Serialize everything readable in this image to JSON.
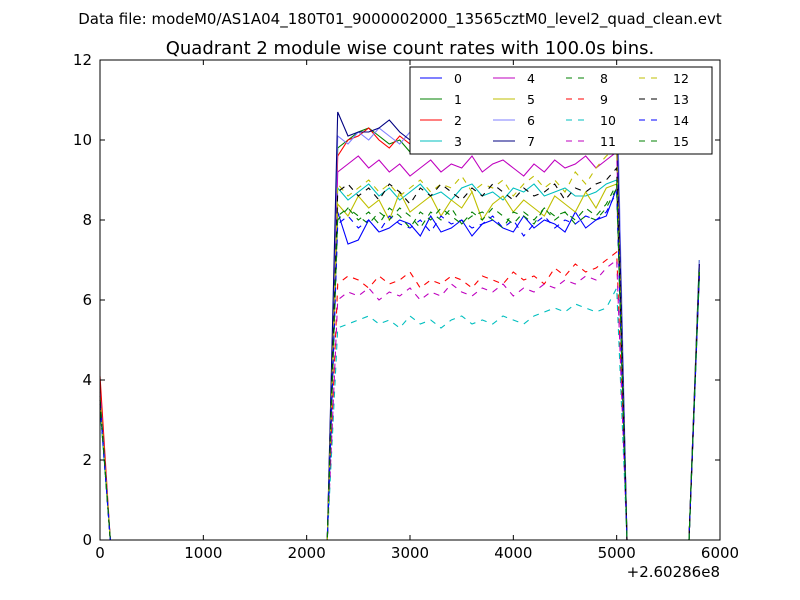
{
  "chart_data": {
    "type": "line",
    "suptitle": "Data file: modeM0/AS1A04_180T01_9000002000_13565cztM0_level2_quad_clean.evt",
    "title": "Quadrant 2 module wise count rates with 100.0s bins.",
    "xlabel": "",
    "ylabel": "",
    "x_offset_label": "+2.60286e8",
    "xlim": [
      0,
      6000
    ],
    "ylim": [
      0,
      12
    ],
    "x_ticks": [
      "0",
      "1000",
      "2000",
      "3000",
      "4000",
      "5000",
      "6000"
    ],
    "y_ticks": [
      "0",
      "2",
      "4",
      "6",
      "8",
      "10",
      "12"
    ],
    "grid": false,
    "legend_position": "top-right",
    "legend_columns": 4,
    "x": [
      0,
      100,
      2200,
      2300,
      2400,
      2500,
      2600,
      2700,
      2800,
      2900,
      3000,
      3100,
      3200,
      3300,
      3400,
      3500,
      3600,
      3700,
      3800,
      3900,
      4000,
      4100,
      4200,
      4300,
      4400,
      4500,
      4600,
      4700,
      4800,
      4900,
      5000,
      5100,
      5700,
      5800
    ],
    "series": [
      {
        "name": "0",
        "color": "#0000ff",
        "dash": false,
        "values": [
          3.6,
          0,
          0,
          8.2,
          7.4,
          7.5,
          8.0,
          7.7,
          7.8,
          8.0,
          7.9,
          7.6,
          8.1,
          7.7,
          7.8,
          8.0,
          7.6,
          7.9,
          8.0,
          7.8,
          7.7,
          8.1,
          7.8,
          8.0,
          7.9,
          7.7,
          8.2,
          7.8,
          8.0,
          8.1,
          8.8,
          0,
          0,
          6.7
        ]
      },
      {
        "name": "1",
        "color": "#008000",
        "dash": false,
        "values": [
          3.5,
          0,
          0,
          9.8,
          10.0,
          10.2,
          10.3,
          10.1,
          9.9,
          10.0,
          9.7,
          10.0,
          10.2,
          9.8,
          10.1,
          9.9,
          10.3,
          10.0,
          9.8,
          10.2,
          10.0,
          9.9,
          10.3,
          10.1,
          9.8,
          10.2,
          10.0,
          10.4,
          10.1,
          10.3,
          10.5,
          0,
          0,
          7.0
        ]
      },
      {
        "name": "2",
        "color": "#ff0000",
        "dash": false,
        "values": [
          4.1,
          0,
          0,
          9.6,
          10.0,
          10.1,
          10.3,
          10.0,
          9.8,
          10.1,
          9.9,
          10.2,
          10.0,
          9.8,
          10.0,
          10.2,
          9.9,
          10.1,
          10.0,
          9.8,
          10.2,
          10.0,
          10.1,
          9.9,
          10.2,
          10.0,
          10.3,
          10.1,
          10.2,
          10.4,
          10.6,
          0,
          0,
          6.9
        ]
      },
      {
        "name": "3",
        "color": "#00bfbf",
        "dash": false,
        "values": [
          3.4,
          0,
          0,
          8.8,
          8.5,
          8.7,
          8.9,
          8.6,
          8.8,
          8.5,
          8.7,
          8.9,
          8.6,
          8.7,
          8.5,
          8.8,
          8.9,
          8.6,
          8.7,
          8.5,
          8.8,
          8.7,
          8.9,
          8.6,
          8.7,
          8.8,
          8.6,
          8.6,
          8.7,
          8.9,
          9.0,
          0,
          0,
          6.8
        ]
      },
      {
        "name": "4",
        "color": "#bf00bf",
        "dash": false,
        "values": [
          3.7,
          0,
          0,
          9.2,
          9.4,
          9.6,
          9.3,
          9.5,
          9.2,
          9.4,
          9.1,
          9.3,
          9.5,
          9.2,
          9.4,
          9.3,
          9.6,
          9.2,
          9.4,
          9.5,
          9.3,
          9.1,
          9.4,
          9.2,
          9.5,
          9.3,
          9.4,
          9.6,
          9.3,
          9.5,
          9.7,
          0,
          0,
          6.7
        ]
      },
      {
        "name": "5",
        "color": "#bfbf00",
        "dash": false,
        "values": [
          3.5,
          0,
          0,
          8.4,
          8.1,
          8.6,
          8.3,
          8.5,
          8.0,
          8.7,
          8.2,
          8.4,
          8.6,
          8.1,
          8.5,
          8.3,
          8.7,
          8.0,
          8.4,
          8.6,
          8.2,
          8.5,
          8.3,
          8.1,
          8.6,
          8.4,
          8.2,
          8.7,
          8.3,
          8.8,
          8.9,
          0,
          0,
          6.8
        ]
      },
      {
        "name": "6",
        "color": "#7f7fff",
        "dash": false,
        "values": [
          3.6,
          0,
          0,
          10.1,
          9.9,
          10.2,
          10.0,
          10.3,
          10.1,
          9.9,
          10.2,
          10.0,
          10.4,
          10.1,
          10.6,
          10.2,
          10.0,
          10.5,
          10.3,
          10.1,
          10.4,
          10.2,
          10.6,
          10.3,
          10.1,
          10.5,
          10.4,
          10.6,
          10.3,
          10.8,
          11.6,
          0,
          0,
          7.0
        ]
      },
      {
        "name": "7",
        "color": "#000080",
        "dash": false,
        "values": [
          3.5,
          0,
          0,
          10.7,
          10.1,
          10.2,
          10.2,
          10.3,
          10.5,
          10.2,
          10.0,
          10.4,
          10.3,
          10.2,
          10.5,
          10.1,
          10.3,
          10.2,
          10.4,
          10.3,
          10.1,
          10.2,
          10.4,
          10.0,
          10.3,
          10.2,
          10.4,
          10.2,
          10.3,
          10.5,
          10.6,
          0,
          0,
          6.9
        ]
      },
      {
        "name": "8",
        "color": "#008000",
        "dash": true,
        "values": [
          3.4,
          0,
          0,
          8.0,
          8.3,
          8.1,
          7.9,
          8.2,
          8.0,
          8.3,
          8.1,
          7.8,
          8.2,
          8.0,
          8.3,
          7.9,
          8.1,
          8.2,
          8.0,
          7.8,
          8.2,
          8.1,
          7.9,
          8.3,
          8.0,
          8.2,
          7.9,
          8.1,
          8.0,
          8.3,
          8.8,
          0,
          0,
          6.7
        ]
      },
      {
        "name": "9",
        "color": "#ff0000",
        "dash": true,
        "values": [
          3.6,
          0,
          0,
          6.4,
          6.6,
          6.5,
          6.3,
          6.6,
          6.4,
          6.5,
          6.7,
          6.3,
          6.5,
          6.4,
          6.6,
          6.5,
          6.3,
          6.6,
          6.5,
          6.4,
          6.7,
          6.5,
          6.6,
          6.4,
          6.8,
          6.6,
          6.9,
          6.7,
          6.8,
          7.0,
          7.2,
          0,
          0,
          6.6
        ]
      },
      {
        "name": "10",
        "color": "#00bfbf",
        "dash": true,
        "values": [
          3.3,
          0,
          0,
          5.3,
          5.4,
          5.5,
          5.6,
          5.4,
          5.5,
          5.3,
          5.6,
          5.4,
          5.5,
          5.3,
          5.5,
          5.6,
          5.4,
          5.5,
          5.4,
          5.6,
          5.5,
          5.4,
          5.6,
          5.7,
          5.8,
          5.7,
          5.9,
          5.8,
          5.7,
          5.8,
          6.3,
          0,
          0,
          6.5
        ]
      },
      {
        "name": "11",
        "color": "#bf00bf",
        "dash": true,
        "values": [
          3.5,
          0,
          0,
          6.0,
          6.2,
          6.1,
          6.3,
          6.0,
          6.2,
          6.1,
          6.3,
          6.0,
          6.2,
          6.1,
          6.4,
          6.2,
          6.1,
          6.3,
          6.2,
          6.4,
          6.1,
          6.3,
          6.2,
          6.4,
          6.3,
          6.5,
          6.4,
          6.6,
          6.5,
          6.8,
          7.0,
          0,
          0,
          6.6
        ]
      },
      {
        "name": "12",
        "color": "#bfbf00",
        "dash": true,
        "values": [
          3.6,
          0,
          0,
          8.9,
          8.6,
          8.8,
          9.0,
          8.7,
          8.9,
          8.6,
          8.8,
          9.0,
          8.7,
          8.9,
          8.8,
          9.1,
          8.7,
          8.9,
          8.8,
          9.0,
          8.6,
          8.9,
          9.1,
          8.8,
          9.0,
          8.7,
          9.2,
          8.9,
          9.3,
          9.6,
          9.8,
          0,
          0,
          6.8
        ]
      },
      {
        "name": "13",
        "color": "#000000",
        "dash": true,
        "values": [
          3.5,
          0,
          0,
          8.7,
          8.9,
          8.6,
          8.8,
          8.5,
          8.9,
          8.7,
          8.4,
          8.8,
          8.6,
          8.9,
          8.7,
          8.5,
          8.8,
          8.6,
          8.9,
          8.7,
          8.5,
          8.8,
          8.6,
          8.7,
          8.9,
          8.5,
          8.8,
          8.7,
          8.9,
          9.0,
          9.3,
          0,
          0,
          6.7
        ]
      },
      {
        "name": "14",
        "color": "#0000ff",
        "dash": true,
        "values": [
          3.4,
          0,
          0,
          7.9,
          8.1,
          7.8,
          8.0,
          7.7,
          8.1,
          7.9,
          7.8,
          8.0,
          7.7,
          8.1,
          7.9,
          8.0,
          7.8,
          7.9,
          8.1,
          7.8,
          8.0,
          7.6,
          7.9,
          8.1,
          7.8,
          8.0,
          7.9,
          8.1,
          8.0,
          8.2,
          8.7,
          0,
          0,
          6.6
        ]
      },
      {
        "name": "15",
        "color": "#008000",
        "dash": true,
        "values": [
          3.5,
          0,
          0,
          8.1,
          8.3,
          8.0,
          8.2,
          7.9,
          8.3,
          8.1,
          7.8,
          8.2,
          8.0,
          8.3,
          8.1,
          7.9,
          8.2,
          8.0,
          8.3,
          8.1,
          7.9,
          8.2,
          8.0,
          8.3,
          8.1,
          8.2,
          8.0,
          8.3,
          8.1,
          8.4,
          8.9,
          0,
          0,
          6.7
        ]
      }
    ]
  }
}
